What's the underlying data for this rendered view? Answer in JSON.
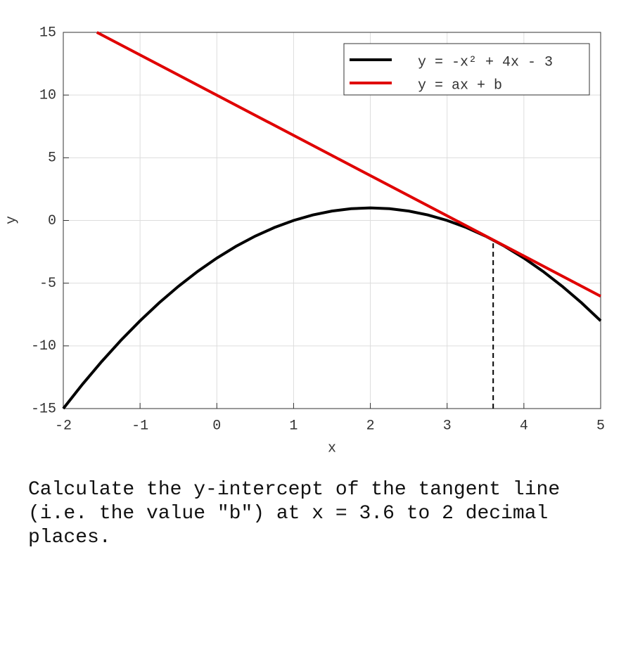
{
  "chart_data": {
    "type": "line",
    "xlabel": "x",
    "ylabel": "y",
    "xlim": [
      -2,
      5
    ],
    "ylim": [
      -15,
      15
    ],
    "xticks": [
      -2,
      -1,
      0,
      1,
      2,
      3,
      4,
      5
    ],
    "yticks": [
      -15,
      -10,
      -5,
      0,
      5,
      10,
      15
    ],
    "grid": true,
    "legend": "upper right",
    "series": [
      {
        "name": "y = -x² + 4x - 3",
        "color": "#000000",
        "x": [
          -2,
          -1.75,
          -1.5,
          -1.25,
          -1,
          -0.75,
          -0.5,
          -0.25,
          0,
          0.25,
          0.5,
          0.75,
          1,
          1.25,
          1.5,
          1.75,
          2,
          2.25,
          2.5,
          2.75,
          3,
          3.25,
          3.5,
          3.75,
          4,
          4.25,
          4.5,
          4.75,
          5
        ],
        "values": [
          -15,
          -13.0625,
          -11.25,
          -9.5625,
          -8,
          -6.5625,
          -5.25,
          -4.0625,
          -3,
          -2.0625,
          -1.25,
          -0.5625,
          0,
          0.4375,
          0.75,
          0.9375,
          1,
          0.9375,
          0.75,
          0.4375,
          0,
          -0.5625,
          -1.25,
          -2.0625,
          -3,
          -4.0625,
          -5.25,
          -6.5625,
          -8
        ]
      },
      {
        "name": "y = ax + b",
        "color": "#e00000",
        "x": [
          -1.5625,
          5
        ],
        "values": [
          15,
          -6.04
        ]
      }
    ],
    "marker": {
      "x": 3.6,
      "y": -1.56
    }
  },
  "question": "Calculate the y-intercept of the tangent line (i.e. the value \"b\") at x = 3.6 to 2 decimal places."
}
